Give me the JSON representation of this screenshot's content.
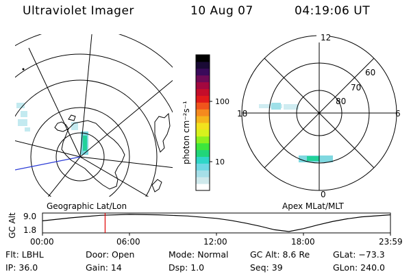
{
  "header": {
    "instrument": "Ultraviolet Imager",
    "date": "10 Aug 07",
    "time": "04:19:06 UT"
  },
  "left_panel": {
    "caption": "Geographic Lat/Lon"
  },
  "right_panel": {
    "caption": "Apex MLat/MLT",
    "lat_labels": [
      "60",
      "70",
      "80"
    ],
    "mlt_labels": {
      "top": "12",
      "left": "18",
      "right": "6",
      "bottom": "0"
    }
  },
  "colorbar": {
    "unit_label": "photon cm⁻²s⁻¹",
    "ticks": [
      "100",
      "10"
    ],
    "colors": [
      "#ffffff",
      "#cfe9ec",
      "#a6dfe8",
      "#6fd8e4",
      "#2fd6c8",
      "#21d67a",
      "#3de63c",
      "#8cf01f",
      "#d6f21d",
      "#f2e21d",
      "#f5b51c",
      "#f58a1e",
      "#f0541c",
      "#e01a1a",
      "#c40d2a",
      "#a3083f",
      "#6e0a55",
      "#3a0a5a",
      "#1a0a35",
      "#000000"
    ]
  },
  "altitude_strip": {
    "axis_label": "GC Alt",
    "y_ticks": [
      "9.0",
      "1.8"
    ],
    "x_ticks": [
      "00:00",
      "06:00",
      "12:00",
      "18:00",
      "23:59"
    ],
    "current_time_hours": 4.32,
    "series": {
      "hours": [
        0,
        2,
        4,
        6,
        8,
        10,
        12,
        13,
        14,
        15,
        16,
        17,
        18,
        19,
        20,
        21,
        22,
        23.98
      ],
      "alt": [
        6.1,
        7.5,
        8.6,
        9.0,
        8.8,
        8.3,
        7.2,
        6.3,
        5.1,
        3.7,
        2.1,
        1.3,
        2.6,
        4.3,
        5.8,
        7.0,
        7.9,
        8.8
      ]
    }
  },
  "footer": {
    "row1": {
      "filter": "Flt: LBHL",
      "door": "Door: Open",
      "mode": "Mode: Normal",
      "gc_alt": "GC Alt: 8.6 Re",
      "glat": "GLat: −73.3"
    },
    "row2": {
      "ip": "IP: 36.0",
      "gain": "Gain: 14",
      "dsp": "Dsp:    1.0",
      "seq": "Seq: 39",
      "glon": "GLon: 240.0"
    }
  },
  "colors": {
    "aurora": "#7fd8e0",
    "aurora_core": "#22d29a",
    "meridian_line": "#2b3bd6",
    "time_marker": "#e00000"
  }
}
